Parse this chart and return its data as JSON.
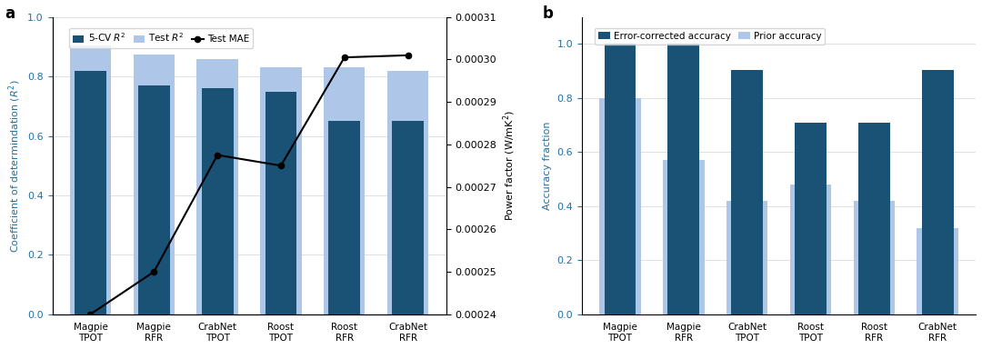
{
  "categories_a": [
    "Magpie\nTPOT",
    "Magpie\nRFR",
    "CrabNet\nTPOT",
    "Roost\nTPOT",
    "Roost\nRFR",
    "CrabNet\nRFR"
  ],
  "cv_r2": [
    0.82,
    0.77,
    0.76,
    0.75,
    0.65,
    0.65
  ],
  "test_r2": [
    0.905,
    0.875,
    0.86,
    0.83,
    0.83,
    0.82
  ],
  "test_mae": [
    0.00024,
    0.00025,
    0.0002775,
    0.000275,
    0.0003005,
    0.000301
  ],
  "categories_b": [
    "Magpie\nTPOT",
    "Magpie\nRFR",
    "CrabNet\nTPOT",
    "Roost\nTPOT",
    "Roost\nRFR",
    "CrabNet\nRFR"
  ],
  "error_corrected": [
    1.0,
    1.0,
    0.905,
    0.71,
    0.71,
    0.905
  ],
  "prior_accuracy": [
    0.8,
    0.57,
    0.42,
    0.48,
    0.42,
    0.32
  ],
  "dark_blue": "#1a5276",
  "light_blue": "#aec6e8",
  "label_blue": "#2471a3",
  "bg_color": "#ffffff",
  "legend_5cv": "5-CV $R^2$",
  "legend_test_r2": "Test $R^2$",
  "legend_test_mae": "Test MAE",
  "legend_ec": "Error-corrected accuracy",
  "legend_prior": "Prior accuracy",
  "ylabel_a": "Coefficient of determindation ($R^2$)",
  "ylabel_a2": "Power factor (W/mK$^2$)",
  "ylabel_b": "Accuracy fraction",
  "ylim_a": [
    0.0,
    1.0
  ],
  "ylim_a2": [
    0.00024,
    0.00031
  ],
  "title_a": "a",
  "title_b": "b"
}
